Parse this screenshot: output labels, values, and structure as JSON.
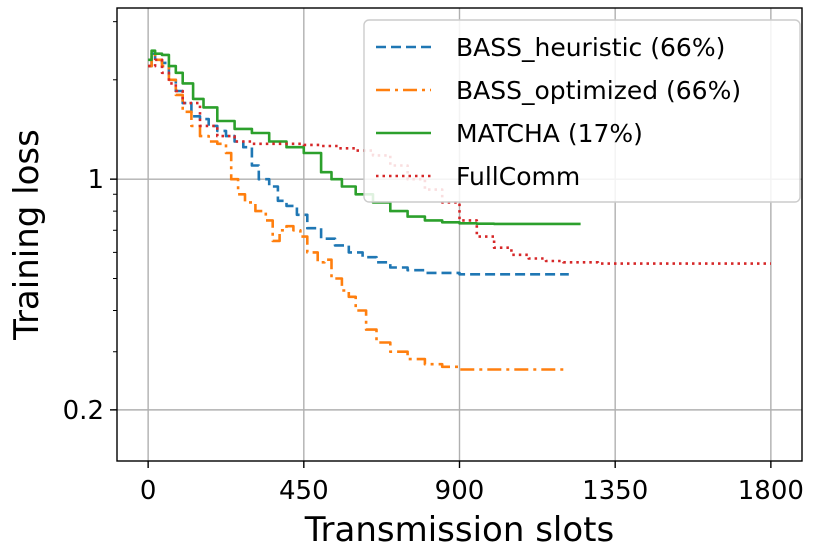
{
  "chart_data": {
    "type": "line",
    "xlabel": "Transmission slots",
    "ylabel": "Training loss",
    "xlim": [
      -90,
      1890
    ],
    "ylim": [
      0.14,
      3.3
    ],
    "yscale": "log",
    "xticks": [
      0,
      450,
      900,
      1350,
      1800
    ],
    "xtick_labels": [
      "0",
      "450",
      "900",
      "1350",
      "1800"
    ],
    "yticks": [
      1,
      0.2
    ],
    "ytick_labels": [
      "1",
      "0.2"
    ],
    "grid": true,
    "legend_position": "upper-right",
    "series": [
      {
        "name": "BASS_heuristic (66%)",
        "color": "#1f77b4",
        "dash": "dashed",
        "x": [
          0,
          10,
          20,
          40,
          60,
          80,
          100,
          125,
          150,
          175,
          200,
          225,
          250,
          275,
          300,
          320,
          350,
          375,
          400,
          430,
          460,
          500,
          540,
          580,
          620,
          660,
          700,
          750,
          800,
          850,
          900,
          1000,
          1100,
          1216
        ],
        "y": [
          2.2,
          2.4,
          2.3,
          2.25,
          2.0,
          1.85,
          1.7,
          1.55,
          1.52,
          1.45,
          1.4,
          1.35,
          1.3,
          1.25,
          1.1,
          1.0,
          0.95,
          0.86,
          0.83,
          0.78,
          0.71,
          0.66,
          0.63,
          0.6,
          0.58,
          0.56,
          0.54,
          0.53,
          0.52,
          0.52,
          0.515,
          0.515,
          0.515,
          0.515
        ]
      },
      {
        "name": "BASS_optimized (66%)",
        "color": "#ff7f0e",
        "dash": "dashdot",
        "x": [
          0,
          10,
          20,
          40,
          60,
          80,
          100,
          125,
          150,
          175,
          200,
          225,
          240,
          260,
          280,
          310,
          340,
          360,
          380,
          400,
          420,
          440,
          460,
          490,
          510,
          530,
          560,
          580,
          600,
          630,
          660,
          700,
          750,
          800,
          850,
          900,
          1000,
          1100,
          1200
        ],
        "y": [
          2.2,
          2.4,
          2.3,
          2.2,
          2.0,
          1.8,
          1.6,
          1.45,
          1.35,
          1.3,
          1.28,
          1.2,
          1.0,
          0.9,
          0.85,
          0.8,
          0.75,
          0.65,
          0.7,
          0.72,
          0.7,
          0.67,
          0.6,
          0.56,
          0.57,
          0.5,
          0.46,
          0.44,
          0.4,
          0.35,
          0.32,
          0.3,
          0.285,
          0.275,
          0.27,
          0.265,
          0.265,
          0.265,
          0.265
        ]
      },
      {
        "name": "MATCHA (17%)",
        "color": "#2ca02c",
        "dash": "solid",
        "x": [
          0,
          10,
          20,
          40,
          60,
          80,
          100,
          130,
          160,
          200,
          250,
          300,
          350,
          400,
          450,
          500,
          530,
          560,
          600,
          650,
          700,
          750,
          800,
          850,
          900,
          950,
          1000,
          1100,
          1250
        ],
        "y": [
          2.3,
          2.45,
          2.4,
          2.38,
          2.2,
          2.1,
          1.95,
          1.75,
          1.65,
          1.5,
          1.42,
          1.38,
          1.3,
          1.25,
          1.2,
          1.05,
          1.0,
          0.95,
          0.9,
          0.85,
          0.8,
          0.77,
          0.75,
          0.74,
          0.735,
          0.733,
          0.732,
          0.732,
          0.732
        ]
      },
      {
        "name": "FullComm",
        "color": "#d62728",
        "dash": "dotted",
        "x": [
          0,
          20,
          40,
          60,
          80,
          100,
          150,
          200,
          250,
          300,
          350,
          400,
          450,
          500,
          550,
          600,
          650,
          700,
          750,
          800,
          850,
          900,
          950,
          1000,
          1050,
          1100,
          1150,
          1200,
          1300,
          1400,
          1500,
          1600,
          1800
        ],
        "y": [
          2.2,
          2.3,
          2.1,
          1.95,
          1.85,
          1.7,
          1.45,
          1.35,
          1.3,
          1.28,
          1.28,
          1.28,
          1.27,
          1.26,
          1.24,
          1.22,
          1.18,
          1.1,
          1.0,
          0.93,
          0.85,
          0.75,
          0.67,
          0.62,
          0.59,
          0.575,
          0.565,
          0.56,
          0.555,
          0.555,
          0.555,
          0.555,
          0.555
        ]
      }
    ]
  }
}
